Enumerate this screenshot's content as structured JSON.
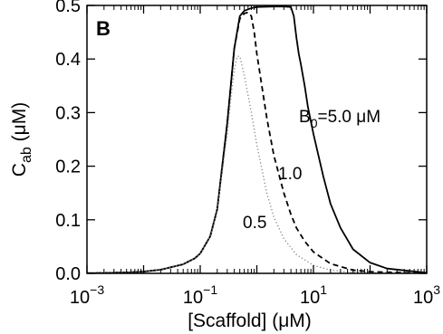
{
  "chart_data": {
    "type": "line",
    "panel_label": "B",
    "xlabel": "[Scaffold] (μM)",
    "ylabel": {
      "base": "C",
      "sub": "ab",
      "unit": " (μM)"
    },
    "xscale": "log",
    "xlim": [
      0.001,
      1000
    ],
    "ylim": [
      0,
      0.5
    ],
    "x_ticks": [
      {
        "value": 0.001,
        "base": "10",
        "exp": "−3"
      },
      {
        "value": 0.1,
        "base": "10",
        "exp": "−1"
      },
      {
        "value": 10,
        "base": "10",
        "exp": "1"
      },
      {
        "value": 1000,
        "base": "10",
        "exp": "3"
      }
    ],
    "y_ticks": [
      "0.0",
      "0.1",
      "0.2",
      "0.3",
      "0.4",
      "0.5"
    ],
    "grid": false,
    "series": [
      {
        "label_parts": {
          "base": "B",
          "sub": "0",
          "rest": "=5.0 μM"
        },
        "line_style": "solid",
        "color": "#000000",
        "x": [
          0.001,
          0.002,
          0.005,
          0.01,
          0.02,
          0.05,
          0.08,
          0.1,
          0.15,
          0.2,
          0.3,
          0.4,
          0.5,
          0.6,
          0.8,
          1,
          2,
          3,
          4,
          4.5,
          5,
          5.5,
          6,
          7,
          8,
          10,
          15,
          20,
          30,
          50,
          100,
          200,
          1000
        ],
        "y": [
          0.0003,
          0.0007,
          0.0017,
          0.0033,
          0.0068,
          0.017,
          0.028,
          0.037,
          0.069,
          0.12,
          0.28,
          0.42,
          0.48,
          0.49,
          0.495,
          0.497,
          0.498,
          0.498,
          0.497,
          0.48,
          0.44,
          0.41,
          0.39,
          0.35,
          0.31,
          0.26,
          0.18,
          0.13,
          0.085,
          0.045,
          0.02,
          0.009,
          0.001
        ]
      },
      {
        "label": "1.0",
        "line_style": "dashed",
        "color": "#000000",
        "x": [
          0.001,
          0.002,
          0.005,
          0.01,
          0.02,
          0.05,
          0.08,
          0.1,
          0.15,
          0.2,
          0.3,
          0.4,
          0.5,
          0.6,
          0.7,
          0.8,
          0.9,
          1,
          1.5,
          2,
          3,
          4,
          5,
          7,
          10,
          20,
          50,
          100,
          1000
        ],
        "y": [
          0.0003,
          0.0007,
          0.0017,
          0.0033,
          0.0068,
          0.017,
          0.028,
          0.037,
          0.069,
          0.12,
          0.28,
          0.42,
          0.475,
          0.485,
          0.487,
          0.48,
          0.45,
          0.41,
          0.29,
          0.22,
          0.15,
          0.11,
          0.085,
          0.06,
          0.04,
          0.018,
          0.006,
          0.003,
          0.0002
        ]
      },
      {
        "label": "0.5",
        "line_style": "dotted",
        "color": "#808080",
        "x": [
          0.001,
          0.002,
          0.005,
          0.01,
          0.02,
          0.05,
          0.08,
          0.1,
          0.15,
          0.2,
          0.3,
          0.35,
          0.4,
          0.45,
          0.5,
          0.6,
          0.8,
          1,
          1.5,
          2,
          3,
          5,
          10,
          20,
          50,
          100,
          1000
        ],
        "y": [
          0.0003,
          0.0007,
          0.0017,
          0.0033,
          0.0068,
          0.017,
          0.028,
          0.037,
          0.069,
          0.12,
          0.26,
          0.33,
          0.38,
          0.405,
          0.405,
          0.37,
          0.3,
          0.24,
          0.15,
          0.105,
          0.065,
          0.035,
          0.015,
          0.006,
          0.002,
          0.001,
          0.0001
        ]
      }
    ]
  }
}
